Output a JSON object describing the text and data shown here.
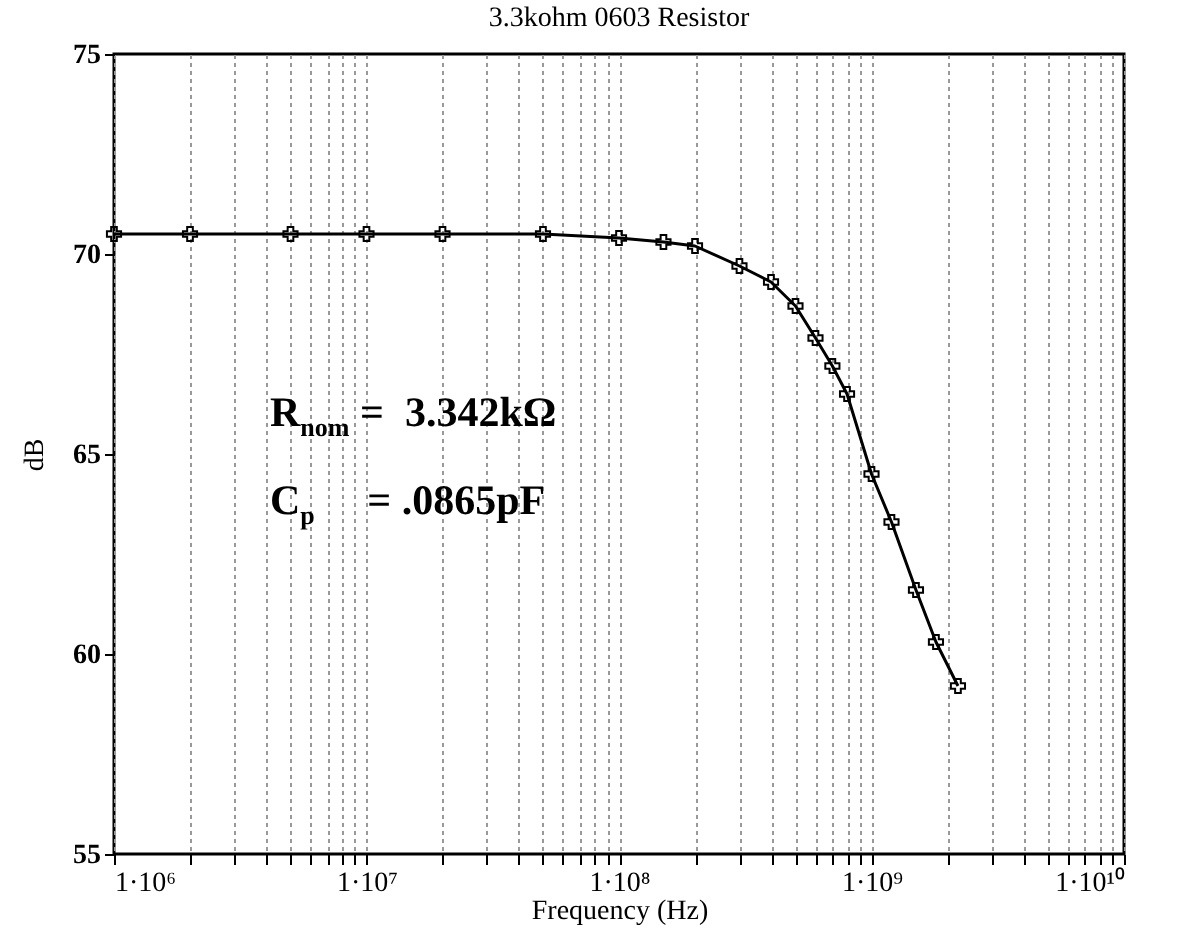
{
  "chart_data": {
    "type": "line",
    "title": "3.3kohm 0603 Resistor",
    "xlabel": "Frequency (Hz)",
    "ylabel": "dB",
    "x": [
      1000000,
      2000000,
      5000000,
      10000000,
      20000000,
      50000000,
      100000000,
      150000000,
      200000000,
      300000000,
      400000000,
      500000000,
      600000000,
      700000000,
      800000000,
      1000000000,
      1200000000,
      1500000000,
      1800000000,
      2200000000
    ],
    "series": [
      {
        "color": "#000000",
        "values": [
          70.5,
          70.5,
          70.5,
          70.5,
          70.5,
          70.5,
          70.4,
          70.3,
          70.2,
          69.7,
          69.3,
          68.7,
          67.9,
          67.2,
          66.5,
          64.5,
          63.3,
          61.6,
          60.3,
          59.2
        ]
      }
    ],
    "xlim": [
      1000000,
      10000000000
    ],
    "xticks": [
      {
        "value": 1000000,
        "label": "1·10⁶"
      },
      {
        "value": 2000000,
        "label": null
      },
      {
        "value": 3000000,
        "label": null
      },
      {
        "value": 4000000,
        "label": null
      },
      {
        "value": 5000000,
        "label": null
      },
      {
        "value": 6000000,
        "label": null
      },
      {
        "value": 7000000,
        "label": null
      },
      {
        "value": 8000000,
        "label": null
      },
      {
        "value": 9000000,
        "label": null
      },
      {
        "value": 10000000,
        "label": "1·10⁷"
      },
      {
        "value": 20000000,
        "label": null
      },
      {
        "value": 30000000,
        "label": null
      },
      {
        "value": 40000000,
        "label": null
      },
      {
        "value": 50000000,
        "label": null
      },
      {
        "value": 60000000,
        "label": null
      },
      {
        "value": 70000000,
        "label": null
      },
      {
        "value": 80000000,
        "label": null
      },
      {
        "value": 90000000,
        "label": null
      },
      {
        "value": 100000000,
        "label": "1·10⁸"
      },
      {
        "value": 200000000,
        "label": null
      },
      {
        "value": 300000000,
        "label": null
      },
      {
        "value": 400000000,
        "label": null
      },
      {
        "value": 500000000,
        "label": null
      },
      {
        "value": 600000000,
        "label": null
      },
      {
        "value": 700000000,
        "label": null
      },
      {
        "value": 800000000,
        "label": null
      },
      {
        "value": 900000000,
        "label": null
      },
      {
        "value": 1000000000,
        "label": "1·10⁹"
      },
      {
        "value": 2000000000,
        "label": null
      },
      {
        "value": 3000000000,
        "label": null
      },
      {
        "value": 4000000000,
        "label": null
      },
      {
        "value": 5000000000,
        "label": null
      },
      {
        "value": 6000000000,
        "label": null
      },
      {
        "value": 7000000000,
        "label": null
      },
      {
        "value": 8000000000,
        "label": null
      },
      {
        "value": 9000000000,
        "label": null
      },
      {
        "value": 10000000000,
        "label": "1·10¹⁰"
      }
    ],
    "ylim": [
      55,
      75
    ],
    "yticks": [
      55,
      60,
      65,
      70,
      75
    ],
    "log": "x",
    "grid": "x",
    "marker": "cross",
    "line_style": "solid",
    "annotations": [
      "R$_{nom}$ =  3.342kΩ",
      "C$_{p}$     = .0865pF"
    ]
  }
}
